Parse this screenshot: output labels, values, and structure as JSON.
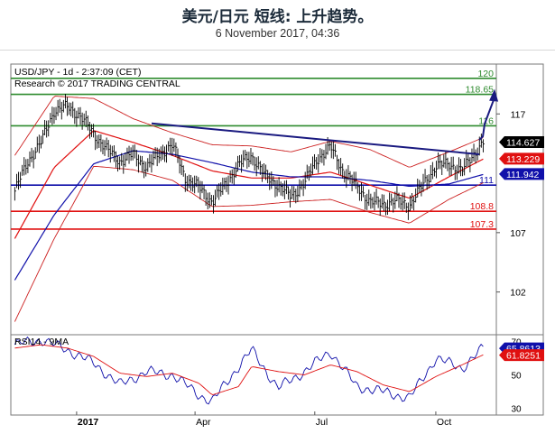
{
  "header": {
    "title": "美元/日元 短线: 上升趋势。",
    "subtitle": "6 November 2017, 04:36"
  },
  "chart_data": [
    {
      "type": "line",
      "title": "USD/JPY - 1d - 2:37:09 (CET)",
      "subtitle": "Research © 2017 TRADING CENTRAL",
      "y_axis_side": "right",
      "ylim": [
        98.4,
        121.2
      ],
      "y_ticks": [
        102,
        107,
        117
      ],
      "x_ticks": [
        {
          "label": "2017",
          "date": "2017-01-01",
          "bold": true
        },
        {
          "label": "Apr",
          "date": "2017-04-01",
          "bold": false
        },
        {
          "label": "Jul",
          "date": "2017-07-01",
          "bold": false
        },
        {
          "label": "Oct",
          "date": "2017-10-01",
          "bold": false
        }
      ],
      "levels": [
        {
          "label": "120",
          "value": 120,
          "color": "#2e8b2e"
        },
        {
          "label": "118.65",
          "value": 118.65,
          "color": "#2e8b2e"
        },
        {
          "label": "116",
          "value": 116,
          "color": "#2e8b2e"
        },
        {
          "label": "111",
          "value": 111,
          "color": "#1010aa"
        },
        {
          "label": "108.8",
          "value": 108.8,
          "color": "#e01010"
        },
        {
          "label": "107.3",
          "value": 107.3,
          "color": "#e01010"
        }
      ],
      "value_flags": [
        {
          "label": "114.627",
          "value": 114.627,
          "bg": "#000000",
          "fg": "#ffffff"
        },
        {
          "label": "113.229",
          "value": 113.229,
          "bg": "#e01010",
          "fg": "#ffffff"
        },
        {
          "label": "111.942",
          "value": 111.942,
          "bg": "#1010aa",
          "fg": "#ffffff"
        }
      ],
      "trendline": {
        "x": [
          "2017-02-27",
          "2017-11-03"
        ],
        "y": [
          116.2,
          113.6
        ],
        "color": "#1a1a80"
      },
      "forecast_arrow": {
        "x": [
          "2017-11-03",
          "2017-11-14"
        ],
        "y": [
          114.8,
          118.8
        ],
        "color": "#1a1a80"
      },
      "series": [
        {
          "kind": "price",
          "color": "#000000",
          "x": [
            "2016-11-15",
            "2016-11-25",
            "2016-12-05",
            "2016-12-15",
            "2016-12-25",
            "2017-01-04",
            "2017-01-14",
            "2017-01-24",
            "2017-02-03",
            "2017-02-13",
            "2017-02-23",
            "2017-03-05",
            "2017-03-15",
            "2017-03-25",
            "2017-04-04",
            "2017-04-14",
            "2017-04-24",
            "2017-05-04",
            "2017-05-14",
            "2017-05-24",
            "2017-06-03",
            "2017-06-13",
            "2017-06-23",
            "2017-07-03",
            "2017-07-13",
            "2017-07-23",
            "2017-08-02",
            "2017-08-12",
            "2017-08-22",
            "2017-09-01",
            "2017-09-11",
            "2017-09-21",
            "2017-10-01",
            "2017-10-11",
            "2017-10-21",
            "2017-10-31",
            "2017-11-06"
          ],
          "y": [
            110.5,
            113.0,
            114.6,
            117.3,
            117.6,
            116.8,
            115.3,
            114.0,
            113.0,
            113.6,
            112.5,
            113.6,
            114.4,
            111.5,
            110.8,
            109.6,
            111.0,
            112.7,
            113.5,
            111.8,
            111.0,
            110.0,
            111.2,
            113.2,
            114.2,
            112.1,
            110.9,
            109.6,
            109.4,
            109.7,
            109.3,
            111.0,
            112.6,
            112.8,
            112.2,
            113.8,
            114.6
          ]
        },
        {
          "kind": "moving-average",
          "color": "#e01010",
          "x": [
            "2016-11-15",
            "2016-12-15",
            "2017-01-14",
            "2017-02-13",
            "2017-03-15",
            "2017-04-14",
            "2017-05-14",
            "2017-06-13",
            "2017-07-13",
            "2017-08-12",
            "2017-09-11",
            "2017-10-11",
            "2017-11-06"
          ],
          "y": [
            106.5,
            112.5,
            115.6,
            114.6,
            113.5,
            112.2,
            111.6,
            111.6,
            112.1,
            111.0,
            109.9,
            111.7,
            113.2
          ]
        },
        {
          "kind": "moving-average",
          "color": "#1010aa",
          "x": [
            "2016-11-15",
            "2016-12-15",
            "2017-01-14",
            "2017-02-13",
            "2017-03-15",
            "2017-04-14",
            "2017-05-14",
            "2017-06-13",
            "2017-07-13",
            "2017-08-12",
            "2017-09-11",
            "2017-10-11",
            "2017-11-06"
          ],
          "y": [
            103.0,
            108.5,
            112.8,
            113.9,
            113.6,
            112.9,
            112.1,
            111.7,
            111.7,
            111.4,
            110.9,
            111.1,
            111.9
          ]
        },
        {
          "kind": "band-upper",
          "color": "#cc2020",
          "x": [
            "2016-11-15",
            "2016-12-15",
            "2017-01-14",
            "2017-02-13",
            "2017-03-15",
            "2017-04-14",
            "2017-05-14",
            "2017-06-13",
            "2017-07-13",
            "2017-08-12",
            "2017-09-11",
            "2017-10-11",
            "2017-11-06"
          ],
          "y": [
            113.5,
            118.5,
            118.3,
            116.6,
            115.4,
            114.4,
            114.3,
            113.8,
            114.7,
            114.0,
            112.5,
            113.8,
            115.0
          ]
        },
        {
          "kind": "band-lower",
          "color": "#cc2020",
          "x": [
            "2016-11-15",
            "2016-12-15",
            "2017-01-14",
            "2017-02-13",
            "2017-03-15",
            "2017-04-14",
            "2017-05-14",
            "2017-06-13",
            "2017-07-13",
            "2017-08-12",
            "2017-09-11",
            "2017-10-11",
            "2017-11-06"
          ],
          "y": [
            99.5,
            106.5,
            112.6,
            112.3,
            111.4,
            109.2,
            109.3,
            109.6,
            109.8,
            108.7,
            107.8,
            109.8,
            111.2
          ]
        }
      ]
    },
    {
      "type": "line",
      "title": "RSI14 - 9MA",
      "ylim": [
        26,
        74
      ],
      "y_ticks": [
        30,
        50,
        70
      ],
      "value_flags": [
        {
          "label": "65.8613",
          "value": 65.8613,
          "bg": "#1010aa",
          "fg": "#ffffff"
        },
        {
          "label": "61.8251",
          "value": 61.8251,
          "bg": "#e01010",
          "fg": "#ffffff"
        }
      ],
      "series": [
        {
          "kind": "rsi",
          "color": "#1010aa",
          "x": [
            "2016-11-15",
            "2016-12-05",
            "2016-12-25",
            "2017-01-14",
            "2017-02-03",
            "2017-02-23",
            "2017-03-15",
            "2017-04-04",
            "2017-04-14",
            "2017-05-04",
            "2017-05-14",
            "2017-06-03",
            "2017-06-23",
            "2017-07-13",
            "2017-08-02",
            "2017-08-22",
            "2017-09-11",
            "2017-10-01",
            "2017-10-21",
            "2017-11-06"
          ],
          "y": [
            68,
            71,
            65,
            57,
            44,
            52,
            50,
            38,
            34,
            55,
            65,
            42,
            52,
            64,
            43,
            40,
            36,
            60,
            54,
            66
          ]
        },
        {
          "kind": "rsi-ma",
          "color": "#e01010",
          "x": [
            "2016-11-15",
            "2016-12-05",
            "2016-12-25",
            "2017-01-14",
            "2017-02-03",
            "2017-02-23",
            "2017-03-15",
            "2017-04-04",
            "2017-04-14",
            "2017-05-04",
            "2017-05-14",
            "2017-06-03",
            "2017-06-23",
            "2017-07-13",
            "2017-08-02",
            "2017-08-22",
            "2017-09-11",
            "2017-10-01",
            "2017-10-21",
            "2017-11-06"
          ],
          "y": [
            66,
            68,
            66,
            61,
            51,
            49,
            51,
            45,
            38,
            43,
            55,
            52,
            50,
            56,
            52,
            44,
            40,
            49,
            56,
            62
          ]
        }
      ]
    }
  ]
}
